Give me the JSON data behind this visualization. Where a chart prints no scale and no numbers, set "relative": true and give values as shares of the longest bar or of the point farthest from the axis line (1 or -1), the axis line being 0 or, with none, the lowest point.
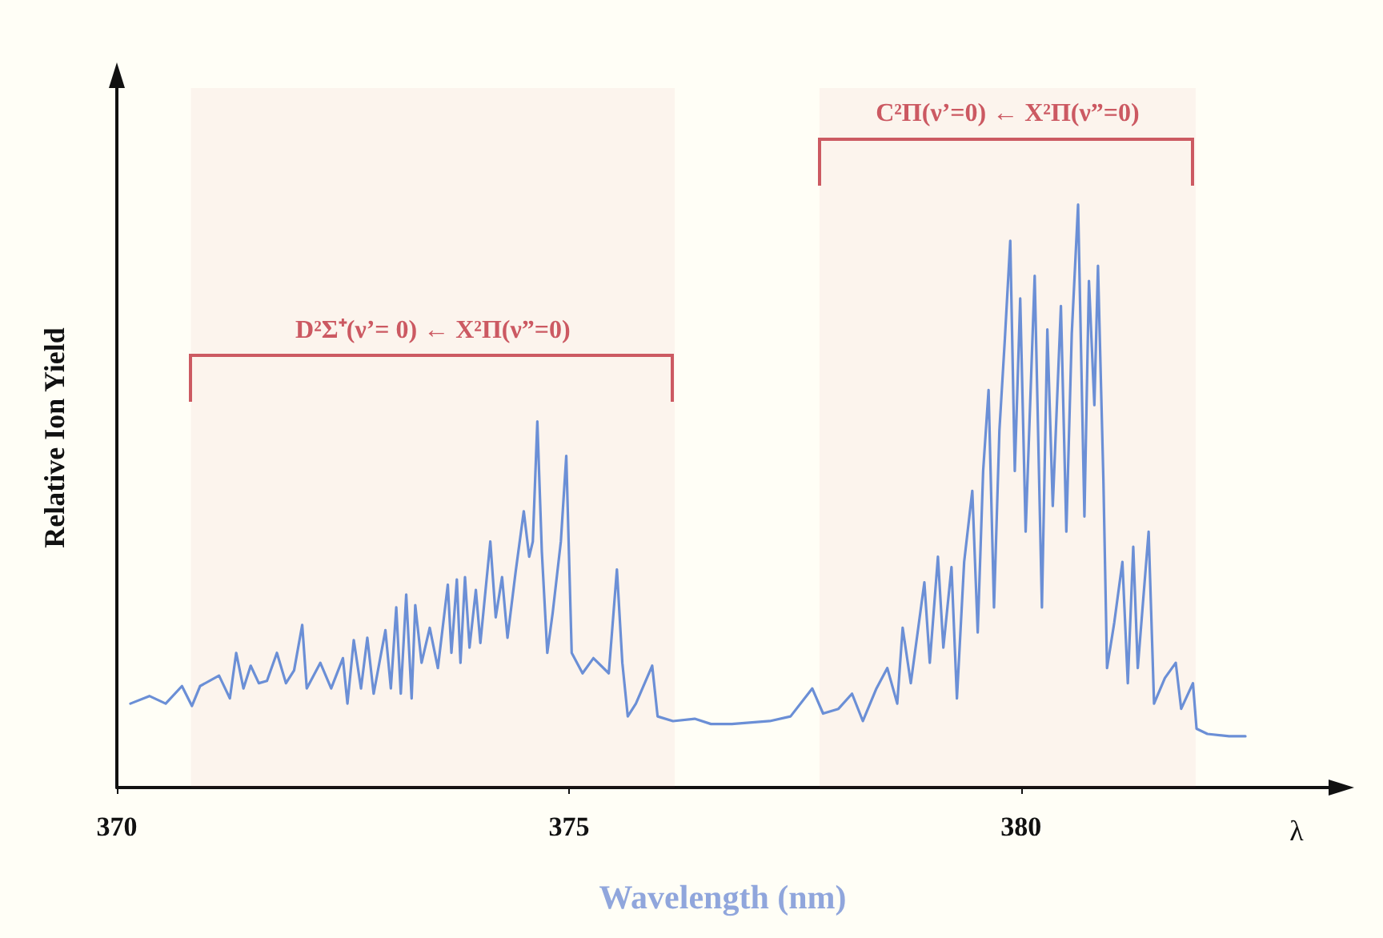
{
  "chart_data": {
    "type": "line",
    "relative": true,
    "xlabel": "Wavelength (nm)",
    "ylabel": "Relative Ion Yield",
    "xlim": [
      370,
      383.4
    ],
    "xticks": [
      370,
      375,
      380
    ],
    "grid": false,
    "marker": "none",
    "line_style": "solid",
    "annotations": [
      "λ"
    ],
    "bands": [
      {
        "axis": "x",
        "from": 370.82,
        "to": 376.17,
        "label": "D²Σ⁺(ν’= 0) ← X²Π(ν”=0)",
        "color": "#cc5a62"
      },
      {
        "axis": "x",
        "from": 377.77,
        "to": 381.93,
        "label": "C²Π(ν’=0) ← X²Π(ν”=0)",
        "color": "#cc5a62"
      }
    ],
    "series": [
      {
        "color": "#6b8fd6",
        "x": [
          370.15,
          370.36,
          370.54,
          370.72,
          370.83,
          370.92,
          371.13,
          371.25,
          371.32,
          371.4,
          371.48,
          371.57,
          371.66,
          371.77,
          371.87,
          371.96,
          372.05,
          372.1,
          372.25,
          372.37,
          372.5,
          372.55,
          372.62,
          372.7,
          372.77,
          372.84,
          372.97,
          373.03,
          373.09,
          373.14,
          373.2,
          373.26,
          373.3,
          373.37,
          373.46,
          373.55,
          373.66,
          373.7,
          373.76,
          373.8,
          373.85,
          373.9,
          373.97,
          374.02,
          374.13,
          374.19,
          374.26,
          374.32,
          374.41,
          374.5,
          374.56,
          374.6,
          374.65,
          374.7,
          374.76,
          374.82,
          374.91,
          374.97,
          375.03,
          375.15,
          375.27,
          375.44,
          375.53,
          375.59,
          375.65,
          375.74,
          375.92,
          375.98,
          376.15,
          376.39,
          376.57,
          376.8,
          377.22,
          377.45,
          377.69,
          377.81,
          377.98,
          378.13,
          378.25,
          378.4,
          378.52,
          378.63,
          378.69,
          378.78,
          378.84,
          378.93,
          378.99,
          379.08,
          379.14,
          379.23,
          379.29,
          379.37,
          379.46,
          379.52,
          379.58,
          379.64,
          379.7,
          379.76,
          379.82,
          379.88,
          379.93,
          379.99,
          380.05,
          380.15,
          380.23,
          380.29,
          380.35,
          380.44,
          380.5,
          380.56,
          380.63,
          380.7,
          380.75,
          380.81,
          380.85,
          380.91,
          380.95,
          381.03,
          381.12,
          381.18,
          381.24,
          381.29,
          381.41,
          381.47,
          381.59,
          381.71,
          381.77,
          381.9,
          381.94,
          382.06,
          382.3,
          382.48
        ],
        "values": [
          0.144,
          0.157,
          0.144,
          0.174,
          0.14,
          0.174,
          0.192,
          0.153,
          0.231,
          0.17,
          0.209,
          0.179,
          0.183,
          0.231,
          0.179,
          0.201,
          0.279,
          0.17,
          0.214,
          0.17,
          0.222,
          0.144,
          0.253,
          0.17,
          0.257,
          0.161,
          0.27,
          0.17,
          0.309,
          0.161,
          0.331,
          0.153,
          0.313,
          0.214,
          0.274,
          0.205,
          0.348,
          0.231,
          0.357,
          0.214,
          0.361,
          0.24,
          0.339,
          0.248,
          0.422,
          0.292,
          0.361,
          0.257,
          0.37,
          0.474,
          0.396,
          0.422,
          0.628,
          0.404,
          0.231,
          0.3,
          0.422,
          0.569,
          0.231,
          0.196,
          0.222,
          0.196,
          0.374,
          0.214,
          0.122,
          0.144,
          0.209,
          0.122,
          0.114,
          0.118,
          0.109,
          0.109,
          0.114,
          0.122,
          0.17,
          0.127,
          0.135,
          0.161,
          0.114,
          0.17,
          0.205,
          0.144,
          0.274,
          0.179,
          0.248,
          0.352,
          0.214,
          0.396,
          0.24,
          0.378,
          0.153,
          0.387,
          0.509,
          0.266,
          0.543,
          0.682,
          0.309,
          0.613,
          0.769,
          0.938,
          0.543,
          0.839,
          0.439,
          0.878,
          0.309,
          0.786,
          0.483,
          0.826,
          0.439,
          0.778,
          1,
          0.465,
          0.869,
          0.656,
          0.895,
          0.526,
          0.205,
          0.283,
          0.387,
          0.179,
          0.413,
          0.205,
          0.439,
          0.144,
          0.188,
          0.214,
          0.135,
          0.179,
          0.101,
          0.092,
          0.088,
          0.088
        ]
      }
    ]
  }
}
